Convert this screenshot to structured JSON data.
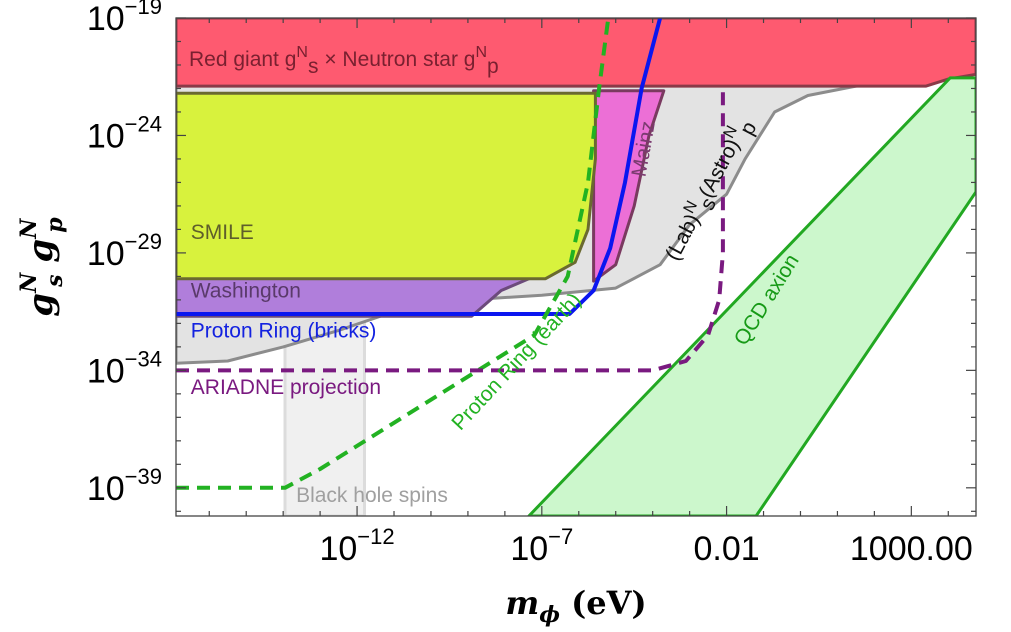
{
  "chart_data": {
    "type": "area",
    "title": "",
    "xlabel": {
      "symbol": "m",
      "subscript": "ϕ",
      "unit": "(eV)"
    },
    "ylabel": {
      "base1": "g",
      "sub1": "s",
      "sup1": "N",
      "base2": "g",
      "sub2": "p",
      "sup2": "N"
    },
    "x_scale": "log10",
    "y_scale": "log10",
    "xlim_log10": [
      -16.9,
      4.75
    ],
    "ylim_log10": [
      -40.2,
      -19
    ],
    "grid": false,
    "x_ticks": [
      {
        "log10": -12,
        "base": "10",
        "exp": "−12"
      },
      {
        "log10": -7,
        "base": "10",
        "exp": "−7"
      },
      {
        "log10": -2,
        "label": "0.01"
      },
      {
        "log10": 3,
        "label": "1000.00"
      }
    ],
    "y_ticks": [
      {
        "log10": -19,
        "base": "10",
        "exp": "−19"
      },
      {
        "log10": -24,
        "base": "10",
        "exp": "−24"
      },
      {
        "log10": -29,
        "base": "10",
        "exp": "−29"
      },
      {
        "log10": -34,
        "base": "10",
        "exp": "−34"
      },
      {
        "log10": -39,
        "base": "10",
        "exp": "−39"
      }
    ],
    "regions": [
      {
        "name": "Black hole spins",
        "fill": "#f0f0f0",
        "opacity": 1,
        "stroke": "#dcdcdc",
        "points": [
          [
            -13.95,
            -40.2
          ],
          [
            -13.95,
            -31.7
          ],
          [
            -11.8,
            -31.7
          ],
          [
            -11.8,
            -40.2
          ]
        ]
      },
      {
        "name": "Lab-Astro",
        "fill": "#e3e3e3",
        "opacity": 1,
        "stroke": "#8c8c8c",
        "points": [
          [
            -16.9,
            -33.7
          ],
          [
            -15.5,
            -33.6
          ],
          [
            -14,
            -33.0
          ],
          [
            -12.5,
            -32.3
          ],
          [
            -11,
            -31.5
          ],
          [
            -9,
            -31.0
          ],
          [
            -7,
            -30.8
          ],
          [
            -5,
            -30.5
          ],
          [
            -3.8,
            -29.5
          ],
          [
            -3.0,
            -27.8
          ],
          [
            -2.0,
            -26.5
          ],
          [
            -1.5,
            -25.0
          ],
          [
            -0.7,
            -23.0
          ],
          [
            0.2,
            -22.3
          ],
          [
            1.5,
            -21.9
          ],
          [
            3.0,
            -21.7
          ],
          [
            4.3,
            -21.3
          ],
          [
            4.75,
            -21.1
          ],
          [
            4.75,
            -19
          ],
          [
            -16.9,
            -19
          ]
        ]
      },
      {
        "name": "Mainz",
        "fill": "#ec6fd6",
        "opacity": 1,
        "stroke": "#7a3a60",
        "points": [
          [
            -5.6,
            -30.2
          ],
          [
            -5.0,
            -29.5
          ],
          [
            -4.5,
            -27.0
          ],
          [
            -4.1,
            -24.0
          ],
          [
            -3.7,
            -22.1
          ],
          [
            -5.6,
            -22.1
          ]
        ]
      },
      {
        "name": "Washington",
        "fill": "#b07edb",
        "opacity": 1,
        "stroke": "#6c4a7c",
        "points": [
          [
            -16.9,
            -31.7
          ],
          [
            -8.9,
            -31.7
          ],
          [
            -8.1,
            -30.6
          ],
          [
            -7.2,
            -30.0
          ],
          [
            -16.9,
            -30.0
          ]
        ]
      },
      {
        "name": "SMILE",
        "fill": "#d8f23d",
        "opacity": 1,
        "stroke": "#6a6a30",
        "points": [
          [
            -16.9,
            -30.1
          ],
          [
            -6.9,
            -30.1
          ],
          [
            -6.1,
            -29.4
          ],
          [
            -5.75,
            -28.0
          ],
          [
            -5.55,
            -25.0
          ],
          [
            -5.55,
            -22.2
          ],
          [
            -16.9,
            -22.2
          ]
        ]
      },
      {
        "name": "Red giant × Neutron star",
        "fill": "#fe5a70",
        "opacity": 1,
        "stroke": "#8a3a48",
        "points": [
          [
            -16.9,
            -19
          ],
          [
            4.75,
            -19
          ],
          [
            4.75,
            -21.4
          ],
          [
            4.0,
            -21.6
          ],
          [
            3.4,
            -21.9
          ],
          [
            -16.9,
            -21.9
          ]
        ]
      },
      {
        "name": "QCD axion",
        "fill": "#ccf7cc",
        "opacity": 1,
        "stroke": "#22a822",
        "points": [
          [
            -7.35,
            -40.2
          ],
          [
            4.05,
            -21.55
          ],
          [
            4.75,
            -21.55
          ],
          [
            4.75,
            -26.4
          ],
          [
            -1.2,
            -40.2
          ]
        ]
      }
    ],
    "series": [
      {
        "name": "Proton Ring (bricks)",
        "color": "#0b16f0",
        "style": "solid",
        "points": [
          [
            -16.9,
            -31.6
          ],
          [
            -6.25,
            -31.6
          ],
          [
            -5.6,
            -30.6
          ],
          [
            -5.15,
            -28.8
          ],
          [
            -4.75,
            -26.0
          ],
          [
            -4.3,
            -22.0
          ],
          [
            -3.8,
            -19
          ]
        ]
      },
      {
        "name": "Proton Ring (earth)",
        "color": "#22b222",
        "style": "dashed",
        "points": [
          [
            -16.9,
            -39.0
          ],
          [
            -13.95,
            -39.0
          ],
          [
            -13.0,
            -38.2
          ],
          [
            -7.2,
            -32.5
          ],
          [
            -6.3,
            -30.0
          ],
          [
            -5.75,
            -26.0
          ],
          [
            -5.45,
            -22.0
          ],
          [
            -5.2,
            -19
          ]
        ]
      },
      {
        "name": "ARIADNE projection",
        "color": "#7a1a80",
        "style": "dashed",
        "points": [
          [
            -16.9,
            -34.0
          ],
          [
            -4.0,
            -34.0
          ],
          [
            -3.1,
            -33.6
          ],
          [
            -2.5,
            -32.5
          ],
          [
            -2.2,
            -31.0
          ],
          [
            -2.1,
            -29.0
          ],
          [
            -2.1,
            -21.9
          ]
        ]
      }
    ],
    "annotations": [
      {
        "text": "SMILE",
        "x_log10": -16.5,
        "y_log10": -28.4,
        "color": "#5e5e2b",
        "rotate": 0
      },
      {
        "text": "Washington",
        "x_log10": -16.5,
        "y_log10": -30.9,
        "color": "#5a3a6a",
        "rotate": 0
      },
      {
        "text": "Proton Ring (bricks)",
        "x_log10": -16.5,
        "y_log10": -32.6,
        "color": "#1322e0",
        "rotate": 0
      },
      {
        "text": "ARIADNE projection",
        "x_log10": -16.5,
        "y_log10": -35.0,
        "color": "#7a1a80",
        "rotate": 0
      },
      {
        "text": "Black hole spins",
        "x_log10": -13.65,
        "y_log10": -39.6,
        "color": "#a0a0a0",
        "rotate": 0
      },
      {
        "text": "Mainz",
        "x_log10": -4.2,
        "y_log10": -25.8,
        "color": "#7b3b70",
        "rotate": -80
      },
      {
        "text": "Proton Ring (earth)",
        "x_log10": -9.2,
        "y_log10": -36.6,
        "color": "#22b222",
        "rotate": -47
      },
      {
        "text": "QCD axion",
        "x_log10": -1.5,
        "y_log10": -33.0,
        "color": "#179a17",
        "rotate": -58
      }
    ],
    "rich_labels": {
      "red_giant": {
        "prefix": "Red giant g",
        "sup1": "N",
        "sub1": "s",
        "mid": " × Neutron star g",
        "sup2": "N",
        "sub2": "p",
        "color": "#7a2030"
      },
      "lab_astro": {
        "prefix": "(Lab)",
        "sup1": "N",
        "sub1": "s",
        "mid": "(Astro)",
        "sup2": "N",
        "sub2": "p",
        "color": "#111111"
      }
    }
  }
}
